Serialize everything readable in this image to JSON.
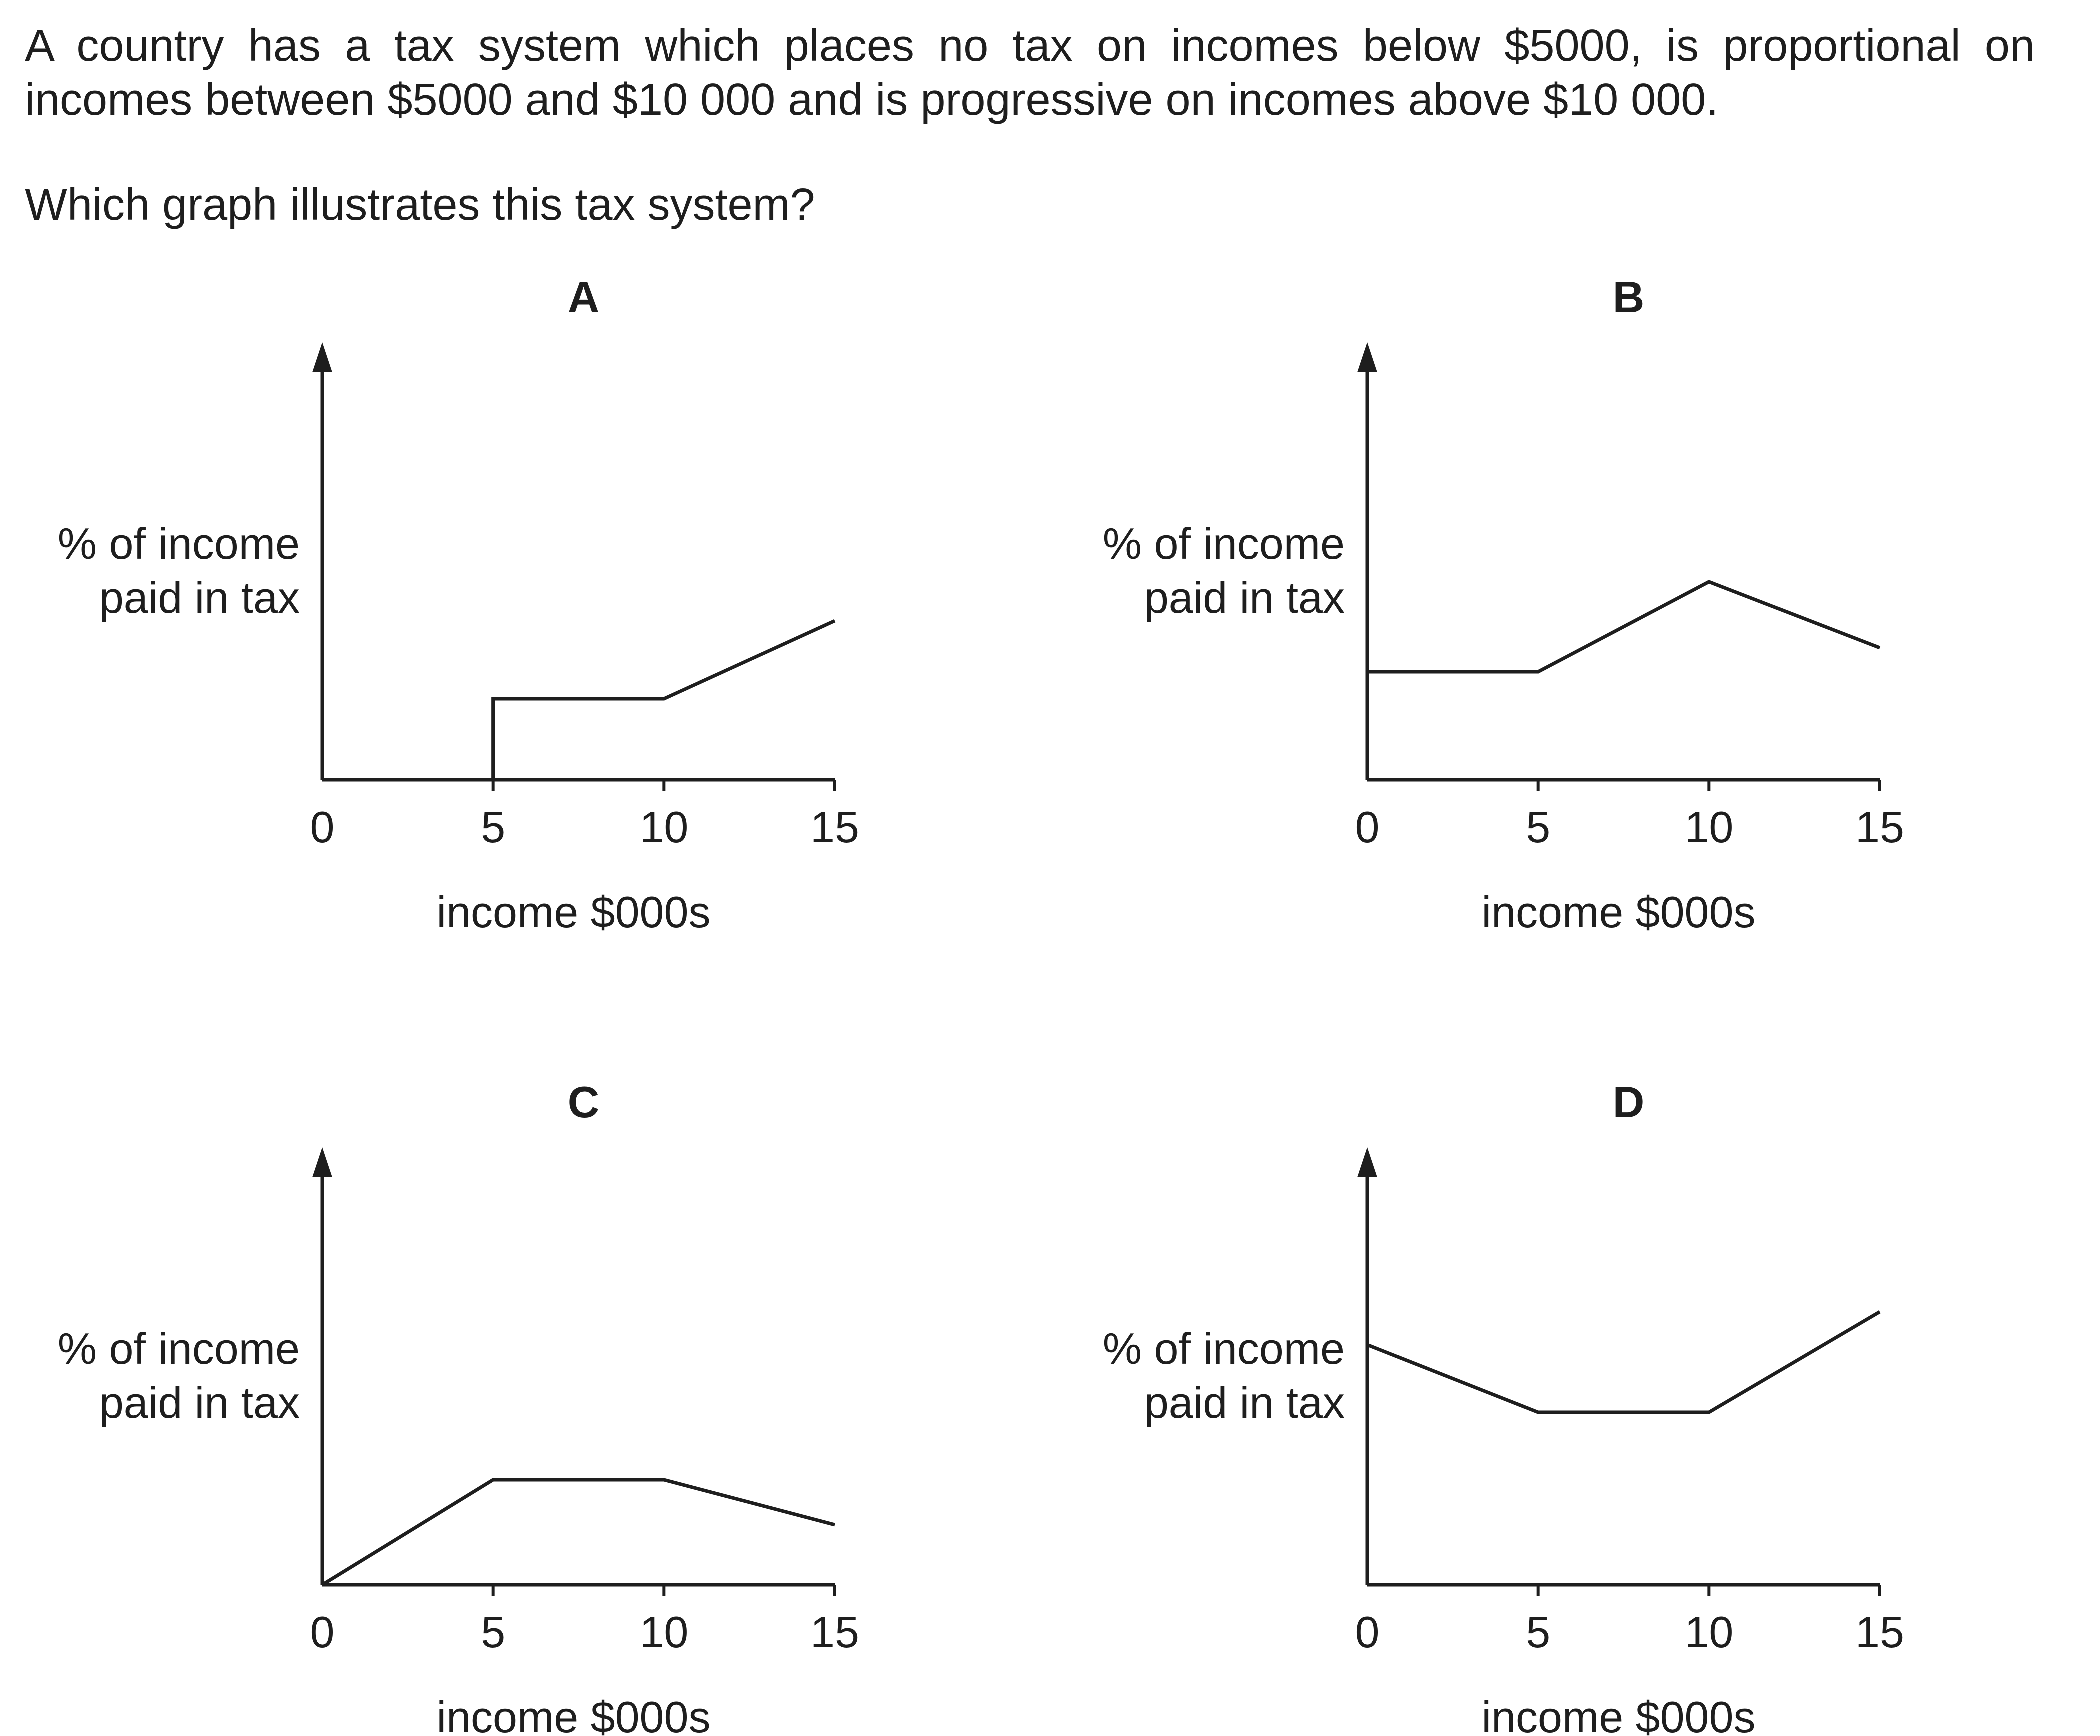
{
  "question": {
    "stem_line1": "A country has a tax system which places no tax on incomes below $5000, is proportional on",
    "stem_line2": "incomes between $5000 and $10 000 and is progressive on incomes above $10 000.",
    "prompt": "Which graph illustrates this tax system?"
  },
  "chart_data": [
    {
      "type": "line",
      "panel": "A",
      "title": "A",
      "ylabel": [
        "% of income",
        "paid in tax"
      ],
      "xlabel": "income $000s",
      "xticks": [
        "0",
        "5",
        "10",
        "15"
      ],
      "xlim": [
        0,
        15
      ],
      "ylim": [
        0,
        10
      ],
      "series": [
        {
          "x": [
            0,
            5,
            5,
            10,
            15
          ],
          "y": [
            0,
            0,
            2.7,
            2.7,
            5.3
          ]
        }
      ]
    },
    {
      "type": "line",
      "panel": "B",
      "title": "B",
      "ylabel": [
        "% of income",
        "paid in tax"
      ],
      "xlabel": "income $000s",
      "xticks": [
        "0",
        "5",
        "10",
        "15"
      ],
      "xlim": [
        0,
        15
      ],
      "ylim": [
        0,
        10
      ],
      "series": [
        {
          "x": [
            0,
            5,
            10,
            15
          ],
          "y": [
            3.6,
            3.6,
            6.6,
            4.4
          ]
        }
      ]
    },
    {
      "type": "line",
      "panel": "C",
      "title": "C",
      "ylabel": [
        "% of income",
        "paid in tax"
      ],
      "xlabel": "income $000s",
      "xticks": [
        "0",
        "5",
        "10",
        "15"
      ],
      "xlim": [
        0,
        15
      ],
      "ylim": [
        0,
        10
      ],
      "series": [
        {
          "x": [
            0,
            5,
            10,
            15
          ],
          "y": [
            0,
            3.5,
            3.5,
            2.0
          ]
        }
      ]
    },
    {
      "type": "line",
      "panel": "D",
      "title": "D",
      "ylabel": [
        "% of income",
        "paid in tax"
      ],
      "xlabel": "income $000s",
      "xticks": [
        "0",
        "5",
        "10",
        "15"
      ],
      "xlim": [
        0,
        15
      ],
      "ylim": [
        0,
        10
      ],
      "series": [
        {
          "x": [
            0,
            5,
            10,
            15
          ],
          "y": [
            8.0,
            5.75,
            5.75,
            9.1
          ]
        }
      ]
    }
  ]
}
